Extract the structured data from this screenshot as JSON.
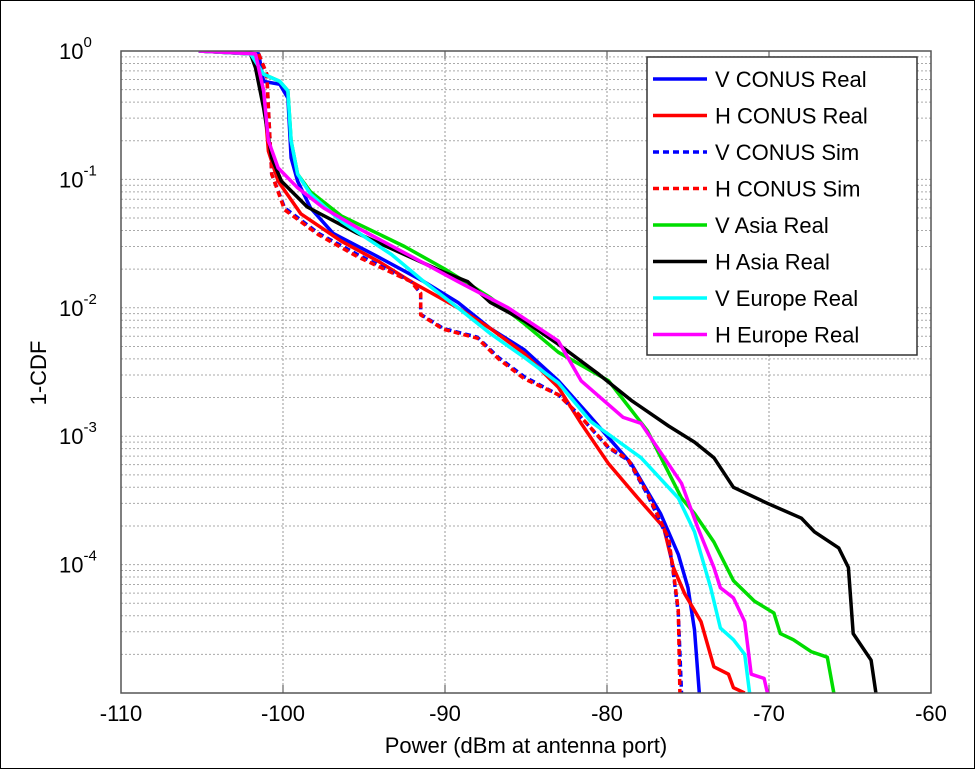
{
  "chart_data": {
    "type": "line",
    "title": "",
    "xlabel": "Power (dBm at antenna port)",
    "ylabel": "1-CDF",
    "xlim": [
      -110,
      -60
    ],
    "ylim": [
      1e-05,
      1
    ],
    "yscale": "log",
    "grid": true,
    "legend_position": "top-right",
    "x_ticks": [
      "-110",
      "-100",
      "-90",
      "-80",
      "-70",
      "-60"
    ],
    "y_ticks": [
      {
        "base": "10",
        "exp": "0"
      },
      {
        "base": "10",
        "exp": "-1"
      },
      {
        "base": "10",
        "exp": "-2"
      },
      {
        "base": "10",
        "exp": "-3"
      },
      {
        "base": "10",
        "exp": "-4"
      }
    ],
    "series": [
      {
        "name": "V CONUS Real",
        "color": "#0000ff",
        "dash": false,
        "points": [
          [
            -105.2,
            1
          ],
          [
            -101.5,
            0.95
          ],
          [
            -101.2,
            0.58
          ],
          [
            -100.2,
            0.55
          ],
          [
            -99.7,
            0.43
          ],
          [
            -99.5,
            0.147
          ],
          [
            -99.1,
            0.097
          ],
          [
            -98.3,
            0.06
          ],
          [
            -96.9,
            0.038
          ],
          [
            -94.4,
            0.026
          ],
          [
            -91.3,
            0.016
          ],
          [
            -89.2,
            0.011
          ],
          [
            -87.2,
            0.0069
          ],
          [
            -85.1,
            0.0047
          ],
          [
            -83.0,
            0.0027
          ],
          [
            -81.2,
            0.0015
          ],
          [
            -78.5,
            0.00061
          ],
          [
            -76.7,
            0.00025
          ],
          [
            -75.6,
            0.00012
          ],
          [
            -75.0,
            6.6e-05
          ],
          [
            -74.6,
            3.1e-05
          ],
          [
            -74.3,
            1e-05
          ]
        ]
      },
      {
        "name": "H CONUS Real",
        "color": "#ff0000",
        "dash": false,
        "points": [
          [
            -105.2,
            1
          ],
          [
            -101.7,
            0.95
          ],
          [
            -101.2,
            0.49
          ],
          [
            -100.9,
            0.166
          ],
          [
            -100.3,
            0.097
          ],
          [
            -98.9,
            0.054
          ],
          [
            -96.4,
            0.033
          ],
          [
            -94.1,
            0.023
          ],
          [
            -92.1,
            0.016
          ],
          [
            -89.2,
            0.01
          ],
          [
            -87.2,
            0.0069
          ],
          [
            -85.1,
            0.0044
          ],
          [
            -83.0,
            0.0024
          ],
          [
            -81.6,
            0.00126
          ],
          [
            -79.9,
            0.00061
          ],
          [
            -78.1,
            0.00033
          ],
          [
            -76.5,
            0.000195
          ],
          [
            -75.9,
            9.5e-05
          ],
          [
            -75.2,
            5.9e-05
          ],
          [
            -74.2,
            3.6e-05
          ],
          [
            -73.4,
            1.6e-05
          ],
          [
            -72.5,
            1.4e-05
          ],
          [
            -72.2,
            1.1e-05
          ],
          [
            -71.5,
            1e-05
          ]
        ]
      },
      {
        "name": "V CONUS Sim",
        "color": "#0000ff",
        "dash": true,
        "points": [
          [
            -105.2,
            1
          ],
          [
            -101.5,
            0.95
          ],
          [
            -101.0,
            0.66
          ],
          [
            -100.9,
            0.36
          ],
          [
            -100.7,
            0.11
          ],
          [
            -99.9,
            0.06
          ],
          [
            -97.8,
            0.038
          ],
          [
            -95.4,
            0.026
          ],
          [
            -92.1,
            0.016
          ],
          [
            -91.5,
            0.013
          ],
          [
            -91.5,
            0.0089
          ],
          [
            -90.1,
            0.0069
          ],
          [
            -88.0,
            0.0059
          ],
          [
            -86.7,
            0.0041
          ],
          [
            -85.1,
            0.0029
          ],
          [
            -83.0,
            0.0021
          ],
          [
            -81.8,
            0.0015
          ],
          [
            -79.9,
            0.00081
          ],
          [
            -78.7,
            0.00065
          ],
          [
            -77.5,
            0.00035
          ],
          [
            -76.2,
            0.000155
          ],
          [
            -75.9,
            8.5e-05
          ],
          [
            -75.6,
            4.2e-05
          ],
          [
            -75.4,
            1e-05
          ]
        ]
      },
      {
        "name": "H CONUS Sim",
        "color": "#ff0000",
        "dash": true,
        "points": [
          [
            -105.2,
            1
          ],
          [
            -101.5,
            0.95
          ],
          [
            -101.0,
            0.66
          ],
          [
            -100.9,
            0.36
          ],
          [
            -100.7,
            0.11
          ],
          [
            -99.9,
            0.058
          ],
          [
            -97.8,
            0.037
          ],
          [
            -95.4,
            0.025
          ],
          [
            -92.1,
            0.016
          ],
          [
            -91.5,
            0.013
          ],
          [
            -91.5,
            0.0088
          ],
          [
            -90.1,
            0.0068
          ],
          [
            -88.0,
            0.0058
          ],
          [
            -86.7,
            0.004
          ],
          [
            -85.1,
            0.0028
          ],
          [
            -83.0,
            0.0021
          ],
          [
            -81.8,
            0.0015
          ],
          [
            -79.9,
            0.00082
          ],
          [
            -78.7,
            0.00066
          ],
          [
            -77.5,
            0.00036
          ],
          [
            -76.2,
            0.00016
          ],
          [
            -75.9,
            8.8e-05
          ],
          [
            -75.6,
            4.4e-05
          ],
          [
            -75.5,
            1e-05
          ]
        ]
      },
      {
        "name": "V Asia Real",
        "color": "#00dd00",
        "dash": false,
        "points": [
          [
            -105.2,
            1
          ],
          [
            -102.0,
            0.95
          ],
          [
            -101.2,
            0.66
          ],
          [
            -100.2,
            0.58
          ],
          [
            -99.7,
            0.49
          ],
          [
            -99.5,
            0.2
          ],
          [
            -99.1,
            0.11
          ],
          [
            -98.3,
            0.08
          ],
          [
            -96.4,
            0.052
          ],
          [
            -92.5,
            0.03
          ],
          [
            -90.0,
            0.02
          ],
          [
            -87.2,
            0.012
          ],
          [
            -85.1,
            0.0075
          ],
          [
            -83.0,
            0.0045
          ],
          [
            -79.9,
            0.0027
          ],
          [
            -77.5,
            0.0011
          ],
          [
            -75.4,
            0.00033
          ],
          [
            -74.6,
            0.00025
          ],
          [
            -73.4,
            0.00015
          ],
          [
            -72.2,
            7.5e-05
          ],
          [
            -70.9,
            5.2e-05
          ],
          [
            -69.7,
            4.2e-05
          ],
          [
            -69.3,
            2.9e-05
          ],
          [
            -68.5,
            2.6e-05
          ],
          [
            -67.4,
            2.1e-05
          ],
          [
            -66.4,
            1.9e-05
          ],
          [
            -66.0,
            1e-05
          ]
        ]
      },
      {
        "name": "H Asia Real",
        "color": "#000000",
        "dash": false,
        "points": [
          [
            -105.2,
            1
          ],
          [
            -102.0,
            0.95
          ],
          [
            -101.7,
            0.74
          ],
          [
            -101.2,
            0.36
          ],
          [
            -100.7,
            0.147
          ],
          [
            -100.1,
            0.097
          ],
          [
            -98.5,
            0.061
          ],
          [
            -95.4,
            0.038
          ],
          [
            -92.5,
            0.026
          ],
          [
            -90.1,
            0.019
          ],
          [
            -88.6,
            0.016
          ],
          [
            -87.2,
            0.011
          ],
          [
            -85.1,
            0.0079
          ],
          [
            -83.0,
            0.0052
          ],
          [
            -80.6,
            0.0031
          ],
          [
            -78.5,
            0.0019
          ],
          [
            -76.2,
            0.0012
          ],
          [
            -74.6,
            0.0009
          ],
          [
            -73.4,
            0.00068
          ],
          [
            -72.2,
            0.0004
          ],
          [
            -70.1,
            0.0003
          ],
          [
            -68.0,
            0.00023
          ],
          [
            -67.2,
            0.00018
          ],
          [
            -65.7,
            0.000135
          ],
          [
            -65.1,
            9.5e-05
          ],
          [
            -64.8,
            2.9e-05
          ],
          [
            -63.7,
            1.8e-05
          ],
          [
            -63.4,
            1e-05
          ]
        ]
      },
      {
        "name": "V Europe Real",
        "color": "#00ffff",
        "dash": false,
        "points": [
          [
            -105.2,
            1
          ],
          [
            -102.0,
            0.95
          ],
          [
            -101.2,
            0.66
          ],
          [
            -100.2,
            0.58
          ],
          [
            -99.7,
            0.49
          ],
          [
            -99.5,
            0.2
          ],
          [
            -99.1,
            0.11
          ],
          [
            -98.3,
            0.077
          ],
          [
            -96.4,
            0.047
          ],
          [
            -93.3,
            0.026
          ],
          [
            -91.3,
            0.016
          ],
          [
            -89.2,
            0.01
          ],
          [
            -87.2,
            0.0063
          ],
          [
            -85.1,
            0.0041
          ],
          [
            -83.0,
            0.0026
          ],
          [
            -81.0,
            0.0013
          ],
          [
            -77.9,
            0.00068
          ],
          [
            -75.6,
            0.00033
          ],
          [
            -74.6,
            0.00018
          ],
          [
            -73.6,
            6.6e-05
          ],
          [
            -73.0,
            3.2e-05
          ],
          [
            -72.2,
            2.6e-05
          ],
          [
            -71.5,
            2e-05
          ],
          [
            -71.2,
            1e-05
          ]
        ]
      },
      {
        "name": "H Europe Real",
        "color": "#ff00ff",
        "dash": false,
        "points": [
          [
            -105.2,
            1
          ],
          [
            -101.7,
            0.95
          ],
          [
            -101.2,
            0.49
          ],
          [
            -100.9,
            0.2
          ],
          [
            -100.3,
            0.123
          ],
          [
            -99.1,
            0.086
          ],
          [
            -97.5,
            0.06
          ],
          [
            -95.4,
            0.042
          ],
          [
            -92.3,
            0.026
          ],
          [
            -89.2,
            0.016
          ],
          [
            -86.1,
            0.01
          ],
          [
            -83.0,
            0.0055
          ],
          [
            -81.6,
            0.0027
          ],
          [
            -79.0,
            0.0014
          ],
          [
            -77.9,
            0.00126
          ],
          [
            -75.4,
            0.00043
          ],
          [
            -74.4,
            0.000195
          ],
          [
            -73.4,
            9.5e-05
          ],
          [
            -73.0,
            6.6e-05
          ],
          [
            -72.2,
            5.5e-05
          ],
          [
            -71.5,
            3.6e-05
          ],
          [
            -71.1,
            1.4e-05
          ],
          [
            -70.3,
            1.3e-05
          ],
          [
            -70.1,
            1e-05
          ]
        ]
      }
    ]
  }
}
